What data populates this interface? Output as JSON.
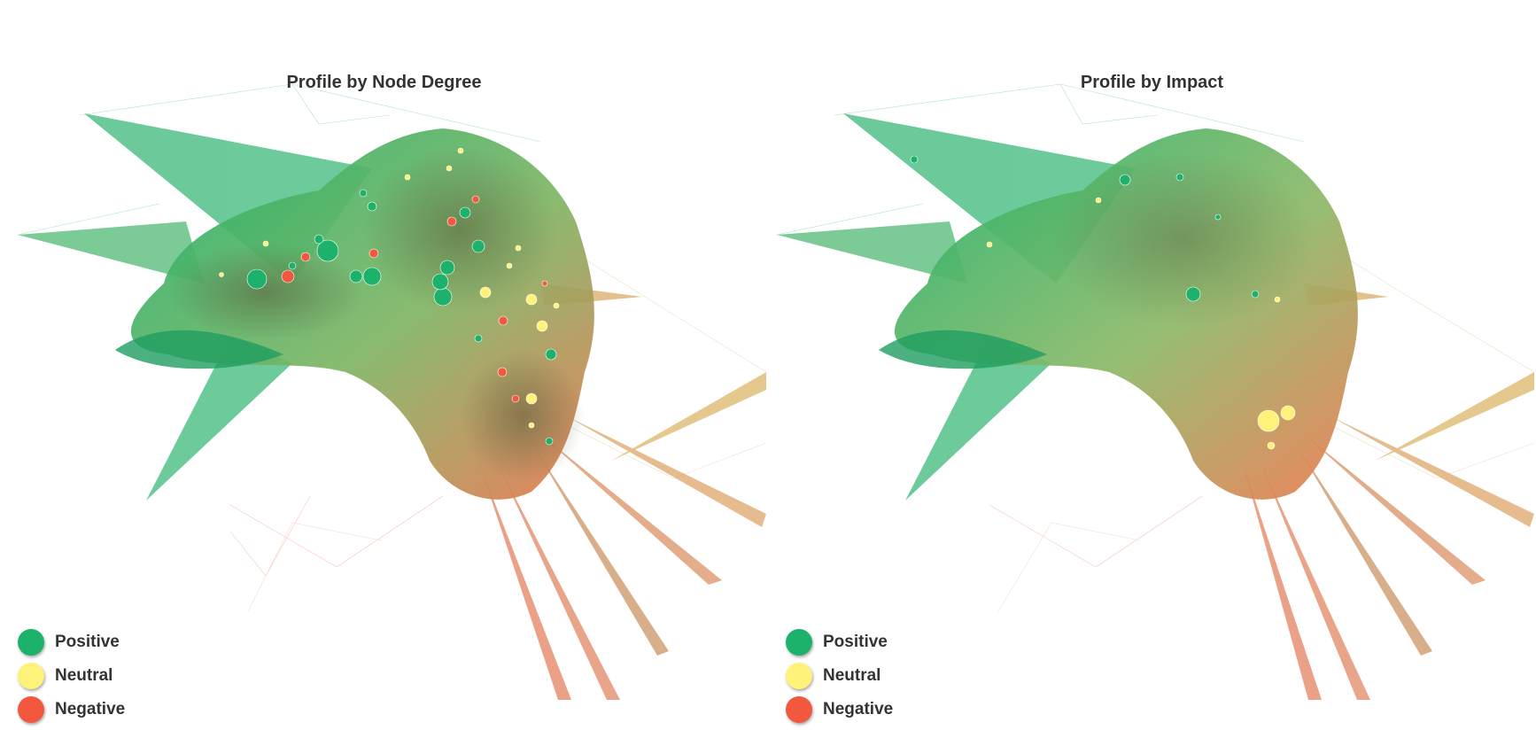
{
  "colors": {
    "positive": "#1db26b",
    "neutral": "#fff27a",
    "negative": "#f1583e"
  },
  "panels": [
    {
      "title": "Profile by Node Degree",
      "legend": [
        {
          "label": "Positive",
          "key": "positive"
        },
        {
          "label": "Neutral",
          "key": "neutral"
        },
        {
          "label": "Negative",
          "key": "negative"
        }
      ]
    },
    {
      "title": "Profile by Impact",
      "legend": [
        {
          "label": "Positive",
          "key": "positive"
        },
        {
          "label": "Neutral",
          "key": "neutral"
        },
        {
          "label": "Negative",
          "key": "negative"
        }
      ]
    }
  ]
}
